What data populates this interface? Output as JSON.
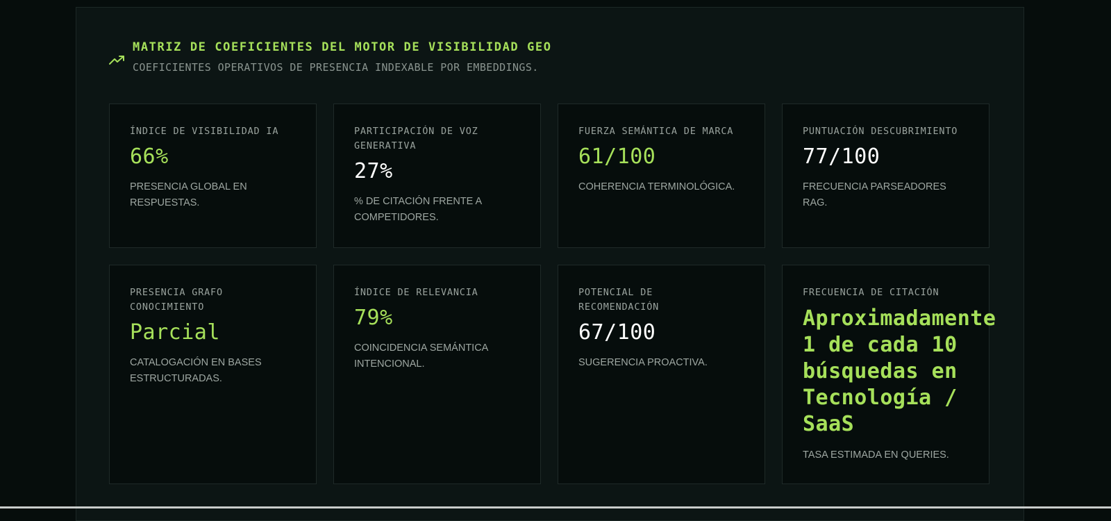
{
  "header": {
    "icon": "trending-up-icon",
    "title": "MATRIZ DE COEFICIENTES DEL MOTOR DE VISIBILIDAD GEO",
    "subtitle": "COEFICIENTES OPERATIVOS DE PRESENCIA INDEXABLE POR EMBEDDINGS."
  },
  "colors": {
    "accent": "#a6e05a",
    "background": "#060d0c",
    "panel": "#0c1514"
  },
  "cards": [
    {
      "label": "ÍNDICE DE VISIBILIDAD IA",
      "value": "66%",
      "desc": "PRESENCIA GLOBAL EN RESPUESTAS."
    },
    {
      "label": "PARTICIPACIÓN DE VOZ GENERATIVA",
      "value": "27%",
      "desc": "% DE CITACIÓN FRENTE A COMPETIDORES."
    },
    {
      "label": "FUERZA SEMÁNTICA DE MARCA",
      "value": "61/100",
      "desc": "COHERENCIA TERMINOLÓGICA."
    },
    {
      "label": "PUNTUACIÓN DESCUBRIMIENTO",
      "value": "77/100",
      "desc": "FRECUENCIA PARSEADORES RAG."
    },
    {
      "label": "PRESENCIA GRAFO CONOCIMIENTO",
      "value": "Parcial",
      "desc": "CATALOGACIÓN EN BASES ESTRUCTURADAS."
    },
    {
      "label": "ÍNDICE DE RELEVANCIA",
      "value": "79%",
      "desc": "COINCIDENCIA SEMÁNTICA INTENCIONAL."
    },
    {
      "label": "POTENCIAL DE RECOMENDACIÓN",
      "value": "67/100",
      "desc": "SUGERENCIA PROACTIVA."
    },
    {
      "label": "FRECUENCIA DE CITACIÓN",
      "value": "Aproximadamente 1 de cada 10 búsquedas en Tecnología / SaaS",
      "desc": "TASA ESTIMADA EN QUERIES."
    }
  ]
}
